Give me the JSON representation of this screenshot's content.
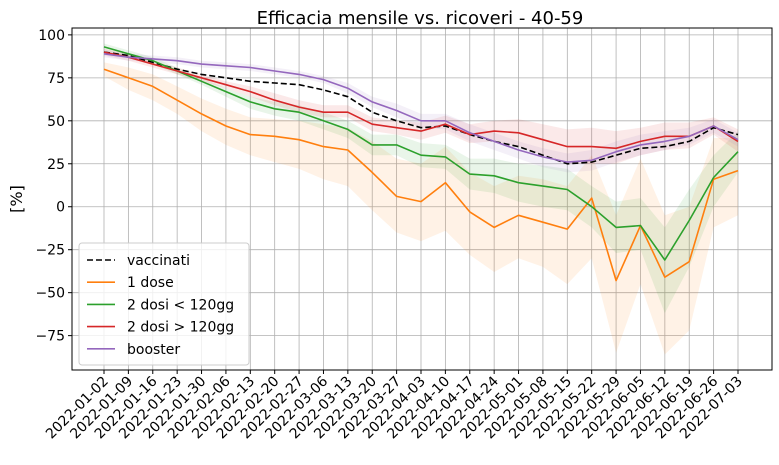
{
  "chart_data": {
    "type": "line",
    "title": "Efficacia mensile vs. ricoveri - 40-59",
    "xlabel": "",
    "ylabel": "[%]",
    "ylim": [
      -95,
      104
    ],
    "yticks": [
      -75,
      -50,
      -25,
      0,
      25,
      50,
      75,
      100
    ],
    "ytick_labels": [
      "−75",
      "−50",
      "−25",
      "0",
      "25",
      "50",
      "75",
      "100"
    ],
    "grid": true,
    "legend_position": "lower-left",
    "categories": [
      "2022-01-02",
      "2022-01-09",
      "2022-01-16",
      "2022-01-23",
      "2022-01-30",
      "2022-02-06",
      "2022-02-13",
      "2022-02-20",
      "2022-02-27",
      "2022-03-06",
      "2022-03-13",
      "2022-03-20",
      "2022-03-27",
      "2022-04-03",
      "2022-04-10",
      "2022-04-17",
      "2022-04-24",
      "2022-05-01",
      "2022-05-08",
      "2022-05-15",
      "2022-05-22",
      "2022-05-29",
      "2022-06-05",
      "2022-06-12",
      "2022-06-19",
      "2022-06-26",
      "2022-07-03"
    ],
    "series": [
      {
        "name": "vaccinati",
        "color": "#000000",
        "dash": true,
        "values": [
          90,
          88,
          84,
          80,
          77,
          75,
          73,
          72,
          71,
          68,
          64,
          55,
          50,
          46,
          47,
          42,
          38,
          35,
          30,
          25,
          26,
          30,
          34,
          35,
          38,
          46,
          42
        ],
        "lower": null,
        "upper": null
      },
      {
        "name": "1 dose",
        "color": "#ff7f0e",
        "dash": false,
        "values": [
          80,
          75,
          70,
          62,
          54,
          47,
          42,
          41,
          39,
          35,
          33,
          20,
          6,
          3,
          14,
          -3,
          -12,
          -5,
          -9,
          -13,
          5,
          -43,
          -11,
          -41,
          -32,
          16,
          21
        ],
        "lower": [
          76,
          68,
          62,
          54,
          44,
          36,
          30,
          26,
          22,
          16,
          12,
          -2,
          -15,
          -20,
          -14,
          -28,
          -38,
          -30,
          -35,
          -45,
          -30,
          -85,
          -45,
          -86,
          -72,
          -12,
          -5
        ],
        "upper": [
          84,
          81,
          77,
          70,
          63,
          57,
          52,
          51,
          50,
          48,
          46,
          38,
          28,
          25,
          35,
          20,
          12,
          18,
          16,
          12,
          30,
          -5,
          28,
          -5,
          0,
          40,
          40
        ]
      },
      {
        "name": "2 dosi < 120gg",
        "color": "#2ca02c",
        "dash": false,
        "values": [
          93,
          89,
          85,
          79,
          73,
          67,
          61,
          57,
          55,
          50,
          45,
          36,
          36,
          30,
          29,
          19,
          18,
          14,
          12,
          10,
          0,
          -12,
          -11,
          -31,
          -8,
          17,
          32
        ],
        "lower": [
          91,
          87,
          83,
          77,
          71,
          64,
          57,
          53,
          50,
          45,
          40,
          30,
          30,
          23,
          22,
          10,
          8,
          3,
          0,
          -2,
          -12,
          -27,
          -25,
          -62,
          -35,
          0,
          20
        ],
        "upper": [
          95,
          91,
          87,
          81,
          75,
          69,
          64,
          61,
          59,
          55,
          50,
          42,
          42,
          37,
          36,
          28,
          28,
          25,
          24,
          22,
          12,
          3,
          5,
          -12,
          10,
          30,
          44
        ]
      },
      {
        "name": "2 dosi > 120gg",
        "color": "#d62728",
        "dash": false,
        "values": [
          90,
          87,
          83,
          79,
          75,
          71,
          67,
          62,
          58,
          55,
          55,
          48,
          46,
          44,
          48,
          42,
          44,
          43,
          39,
          35,
          35,
          34,
          38,
          41,
          41,
          47,
          38
        ],
        "lower": [
          88,
          85,
          81,
          77,
          73,
          69,
          64,
          59,
          55,
          52,
          52,
          44,
          42,
          39,
          43,
          37,
          38,
          35,
          30,
          25,
          25,
          25,
          30,
          33,
          34,
          42,
          32
        ],
        "upper": [
          92,
          89,
          85,
          81,
          77,
          73,
          70,
          66,
          62,
          59,
          59,
          52,
          50,
          49,
          53,
          48,
          50,
          51,
          48,
          45,
          46,
          44,
          46,
          49,
          49,
          52,
          45
        ]
      },
      {
        "name": "booster",
        "color": "#9467bd",
        "dash": false,
        "values": [
          89,
          87,
          86,
          85,
          83,
          82,
          81,
          79,
          77,
          74,
          69,
          61,
          56,
          50,
          50,
          43,
          38,
          33,
          29,
          26,
          27,
          32,
          36,
          38,
          41,
          47,
          39
        ],
        "lower": [
          87,
          85,
          84,
          83,
          81,
          80,
          79,
          77,
          75,
          72,
          66,
          58,
          52,
          46,
          45,
          38,
          33,
          28,
          23,
          20,
          21,
          26,
          30,
          33,
          36,
          43,
          35
        ],
        "upper": [
          91,
          89,
          88,
          87,
          85,
          84,
          83,
          81,
          79,
          76,
          72,
          64,
          60,
          54,
          54,
          48,
          43,
          38,
          34,
          31,
          33,
          38,
          42,
          44,
          46,
          51,
          43
        ]
      }
    ]
  }
}
